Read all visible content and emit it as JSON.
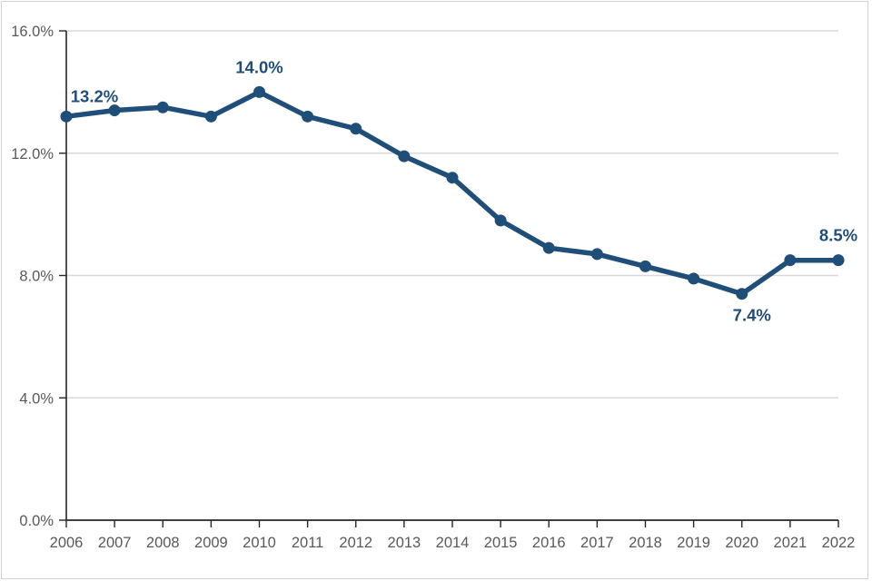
{
  "chart_data": {
    "type": "line",
    "title": "",
    "xlabel": "",
    "ylabel": "",
    "categories": [
      "2006",
      "2007",
      "2008",
      "2009",
      "2010",
      "2011",
      "2012",
      "2013",
      "2014",
      "2015",
      "2016",
      "2017",
      "2018",
      "2019",
      "2020",
      "2021",
      "2022"
    ],
    "series": [
      {
        "name": "rate",
        "values": [
          13.2,
          13.4,
          13.5,
          13.2,
          14.0,
          13.2,
          12.8,
          11.9,
          11.2,
          9.8,
          8.9,
          8.7,
          8.3,
          7.9,
          7.4,
          8.5,
          8.5
        ]
      }
    ],
    "ylim": [
      0,
      16
    ],
    "ytick_step": 4,
    "ytick_labels": [
      "0.0%",
      "4.0%",
      "8.0%",
      "12.0%",
      "16.0%"
    ],
    "grid": "horizontal",
    "legend_position": "none",
    "point_labels": [
      {
        "category": "2006",
        "text": "13.2%",
        "placement": "above-right"
      },
      {
        "category": "2010",
        "text": "14.0%",
        "placement": "above"
      },
      {
        "category": "2020",
        "text": "7.4%",
        "placement": "below"
      },
      {
        "category": "2022",
        "text": "8.5%",
        "placement": "above"
      }
    ],
    "colors": {
      "line": "#1f4e79",
      "marker": "#1f4e79",
      "data_label": "#1f4e79",
      "axis_text": "#595959",
      "gridline": "#d9d9d9",
      "axis_line": "#262626"
    }
  }
}
